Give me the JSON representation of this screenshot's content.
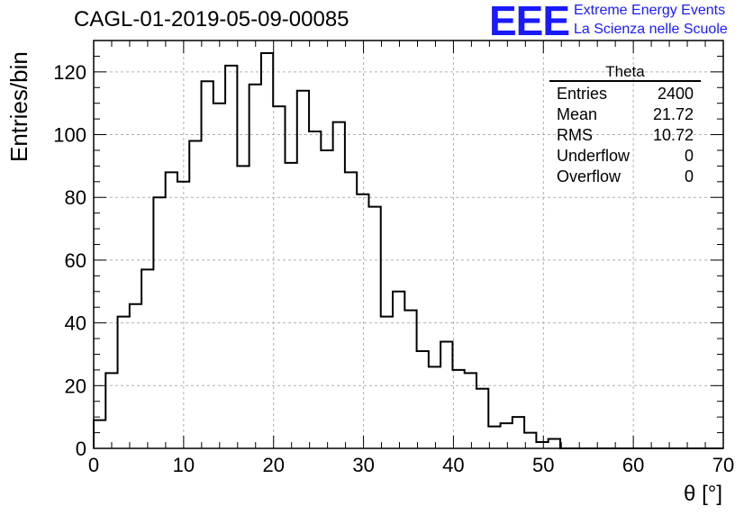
{
  "title": "CAGL-01-2019-05-09-00085",
  "logo": {
    "mark": "EEE",
    "line1": "Extreme Energy Events",
    "line2": "La Scienza nelle Scuole",
    "color": "#1a1aff"
  },
  "stats_box": {
    "name": "Theta",
    "rows": [
      {
        "label": "Entries",
        "value": "2400"
      },
      {
        "label": "Mean",
        "value": "21.72"
      },
      {
        "label": "RMS",
        "value": "10.72"
      },
      {
        "label": "Underflow",
        "value": "0"
      },
      {
        "label": "Overflow",
        "value": "0"
      }
    ]
  },
  "chart_data": {
    "type": "histogram",
    "xlabel": "θ [°]",
    "ylabel": "Entries/bin",
    "xlim": [
      0,
      70
    ],
    "ylim": [
      0,
      130
    ],
    "x_ticks": [
      0,
      10,
      20,
      30,
      40,
      50,
      60,
      70
    ],
    "y_ticks": [
      0,
      20,
      40,
      60,
      80,
      100,
      120
    ],
    "grid": true,
    "bin_width": 1.33,
    "bin_edges_start": 0,
    "values": [
      9,
      24,
      42,
      46,
      57,
      80,
      88,
      85,
      98,
      117,
      110,
      122,
      90,
      116,
      126,
      109,
      91,
      114,
      101,
      95,
      104,
      88,
      81,
      77,
      42,
      50,
      44,
      31,
      26,
      34,
      25,
      24,
      19,
      7,
      8,
      10,
      5,
      2,
      3,
      0,
      0,
      0,
      0,
      0,
      0,
      0,
      0,
      0,
      0,
      0,
      0,
      0,
      0
    ]
  }
}
